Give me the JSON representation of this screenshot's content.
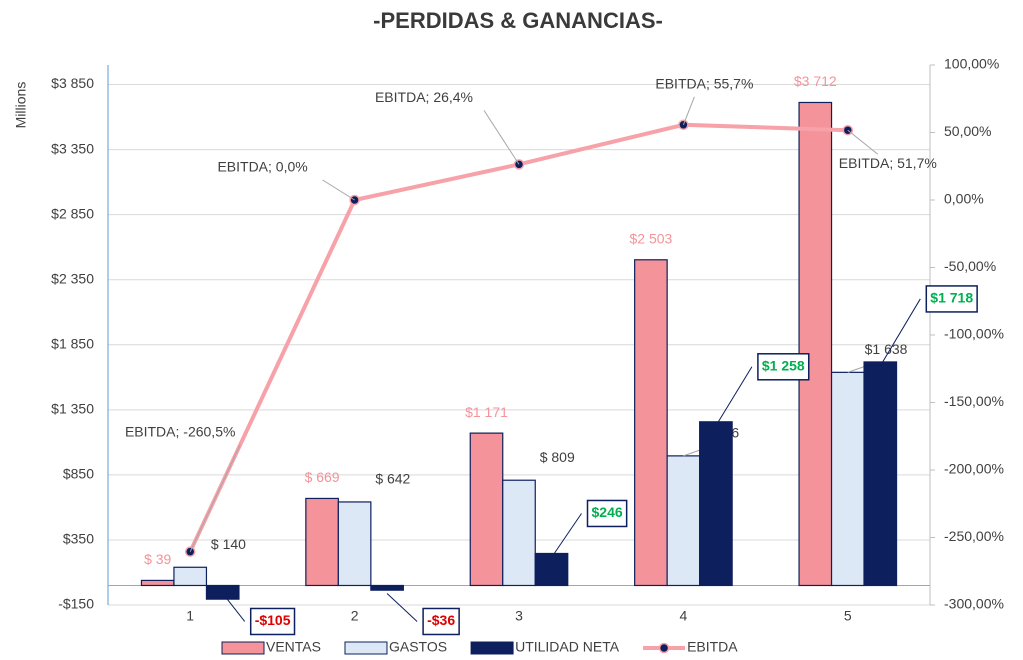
{
  "chart_data": {
    "type": "bar-line",
    "title": "-PERDIDAS & GANANCIAS-",
    "y_axis_label": "Millions",
    "categories": [
      "1",
      "2",
      "3",
      "4",
      "5"
    ],
    "ylim": [
      -150,
      4000
    ],
    "yticks": [
      {
        "value": -150,
        "label": "-$150"
      },
      {
        "value": 350,
        "label": "$350"
      },
      {
        "value": 850,
        "label": "$850"
      },
      {
        "value": 1350,
        "label": "$1 350"
      },
      {
        "value": 1850,
        "label": "$1 850"
      },
      {
        "value": 2350,
        "label": "$2 350"
      },
      {
        "value": 2850,
        "label": "$2 850"
      },
      {
        "value": 3350,
        "label": "$3 350"
      },
      {
        "value": 3850,
        "label": "$3 850"
      }
    ],
    "y2lim": [
      -300,
      100
    ],
    "y2ticks": [
      {
        "value": -300,
        "label": "-300,00%"
      },
      {
        "value": -250,
        "label": "-250,00%"
      },
      {
        "value": -200,
        "label": "-200,00%"
      },
      {
        "value": -150,
        "label": "-150,00%"
      },
      {
        "value": -100,
        "label": "-100,00%"
      },
      {
        "value": -50,
        "label": "-50,00%"
      },
      {
        "value": 0,
        "label": "0,00%"
      },
      {
        "value": 50,
        "label": "50,00%"
      },
      {
        "value": 100,
        "label": "100,00%"
      }
    ],
    "grid": true,
    "legend": "bottom",
    "series": [
      {
        "name": "VENTAS",
        "type": "bar",
        "color": "#f4939a",
        "values": [
          39,
          669,
          1171,
          2503,
          3712
        ],
        "value_labels": [
          "$ 39",
          "$ 669",
          "$1 171",
          "$2 503",
          "$3 712"
        ]
      },
      {
        "name": "GASTOS",
        "type": "bar",
        "color": "#dde8f6",
        "values": [
          140,
          642,
          809,
          996,
          1638
        ],
        "value_labels": [
          "$ 140",
          "$ 642",
          "$ 809",
          "$ 996",
          "$1 638"
        ]
      },
      {
        "name": "UTILIDAD NETA",
        "type": "bar",
        "color": "#0d1f5c",
        "values": [
          -105,
          -36,
          246,
          1258,
          1718
        ],
        "value_labels": [
          "-$105",
          "-$36",
          "$246",
          "$1 258",
          "$1 718"
        ]
      },
      {
        "name": "EBITDA",
        "type": "line",
        "axis": "y2",
        "color": "#f7a1a8",
        "values": [
          -260.5,
          0,
          26.4,
          55.7,
          51.7
        ],
        "value_labels": [
          "EBITDA; -260,5%",
          "EBITDA; 0,0%",
          "EBITDA; 26,4%",
          "EBITDA; 55,7%",
          "EBITDA; 51,7%"
        ]
      }
    ]
  }
}
